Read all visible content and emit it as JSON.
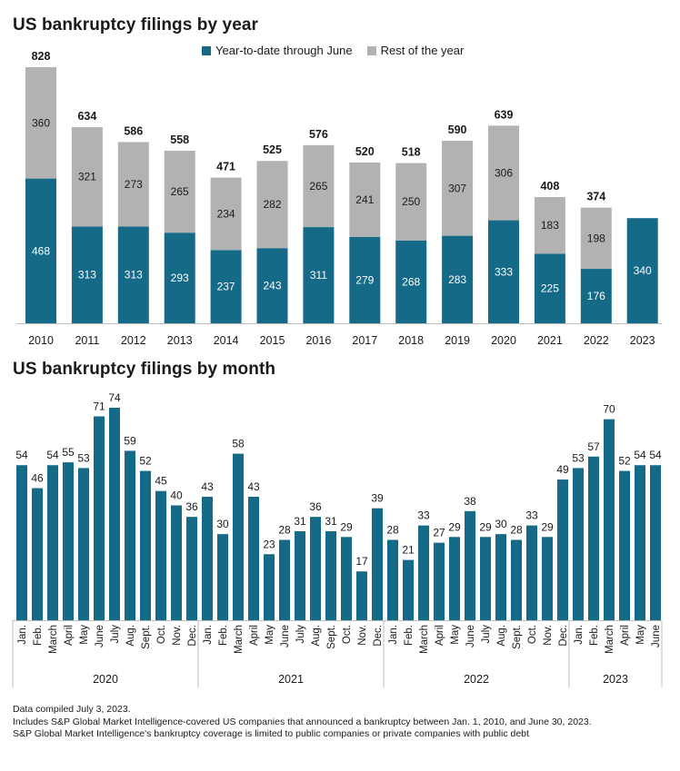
{
  "colors": {
    "ytd": "#146a87",
    "rest": "#b2b2b2",
    "text": "#1a1a1a",
    "axis": "#bdbdbd"
  },
  "legend": {
    "ytd": "Year-to-date through June",
    "rest": "Rest of the year"
  },
  "chart_data": [
    {
      "type": "bar",
      "stacked": true,
      "title": "US bankruptcy filings by year",
      "categories": [
        "2010",
        "2011",
        "2012",
        "2013",
        "2014",
        "2015",
        "2016",
        "2017",
        "2018",
        "2019",
        "2020",
        "2021",
        "2022",
        "2023"
      ],
      "series": [
        {
          "name": "Year-to-date through June",
          "values": [
            468,
            313,
            313,
            293,
            237,
            243,
            311,
            279,
            268,
            283,
            333,
            225,
            176,
            340
          ]
        },
        {
          "name": "Rest of the year",
          "values": [
            360,
            321,
            273,
            265,
            234,
            282,
            265,
            241,
            250,
            307,
            306,
            183,
            198,
            null
          ]
        }
      ],
      "totals": [
        828,
        634,
        586,
        558,
        471,
        525,
        576,
        520,
        518,
        590,
        639,
        408,
        374,
        null
      ],
      "ylim": [
        0,
        828
      ]
    },
    {
      "type": "bar",
      "title": "US bankruptcy filings by month",
      "categories": [
        "Jan.",
        "Feb.",
        "March",
        "April",
        "May",
        "June",
        "July",
        "Aug.",
        "Sept.",
        "Oct.",
        "Nov.",
        "Dec.",
        "Jan.",
        "Feb.",
        "March",
        "April",
        "May",
        "June",
        "July",
        "Aug.",
        "Sept.",
        "Oct.",
        "Nov.",
        "Dec.",
        "Jan.",
        "Feb.",
        "March",
        "April",
        "May",
        "June",
        "July",
        "Aug.",
        "Sept.",
        "Oct.",
        "Nov.",
        "Dec.",
        "Jan.",
        "Feb.",
        "March",
        "April",
        "May",
        "June"
      ],
      "values": [
        54,
        46,
        54,
        55,
        53,
        71,
        74,
        59,
        52,
        45,
        40,
        36,
        43,
        30,
        58,
        43,
        23,
        28,
        31,
        36,
        31,
        29,
        17,
        39,
        28,
        21,
        33,
        27,
        29,
        38,
        29,
        30,
        28,
        33,
        29,
        49,
        53,
        57,
        70,
        52,
        54,
        54
      ],
      "groups": [
        {
          "label": "2020",
          "count": 12
        },
        {
          "label": "2021",
          "count": 12
        },
        {
          "label": "2022",
          "count": 12
        },
        {
          "label": "2023",
          "count": 6
        }
      ],
      "ylim": [
        0,
        74
      ]
    }
  ],
  "notes": [
    "Data compiled July 3, 2023.",
    "Includes S&P Global Market Intelligence-covered US companies that announced a bankruptcy between Jan. 1, 2010, and June 30, 2023.",
    "S&P Global Market Intelligence's bankruptcy coverage is limited to public companies or private companies with public debt"
  ]
}
